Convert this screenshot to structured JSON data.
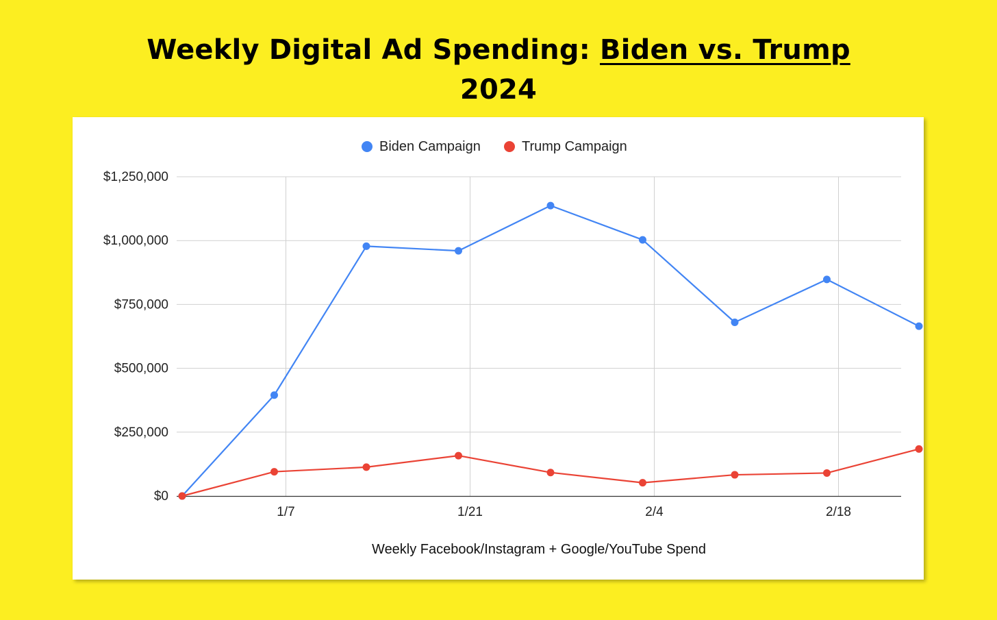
{
  "title": {
    "prefix": "Weekly Digital Ad Spending: ",
    "emphasis": "Biden vs. Trump",
    "suffix": "2024"
  },
  "chart_data": {
    "type": "line",
    "x": [
      "12/31",
      "1/7",
      "1/14",
      "1/21",
      "1/28",
      "2/4",
      "2/11",
      "2/18",
      "2/25"
    ],
    "x_axis_label": "Weekly Facebook/Instagram + Google/YouTube Spend",
    "x_ticks": [
      "1/7",
      "1/21",
      "2/4",
      "2/18"
    ],
    "ylabel": "",
    "ylim": [
      0,
      1250000
    ],
    "y_ticks": [
      0,
      250000,
      500000,
      750000,
      1000000,
      1250000
    ],
    "y_tick_labels": [
      "$0",
      "$250,000",
      "$500,000",
      "$750,000",
      "$1,000,000",
      "$1,250,000"
    ],
    "grid": true,
    "legend_position": "top-center",
    "series": [
      {
        "name": "Biden Campaign",
        "color": "#4285f4",
        "values": [
          0,
          395000,
          978000,
          960000,
          1137000,
          1003000,
          680000,
          848000,
          665000
        ]
      },
      {
        "name": "Trump Campaign",
        "color": "#ea4335",
        "values": [
          0,
          95000,
          113000,
          158000,
          92000,
          52000,
          83000,
          90000,
          184000
        ]
      }
    ]
  }
}
